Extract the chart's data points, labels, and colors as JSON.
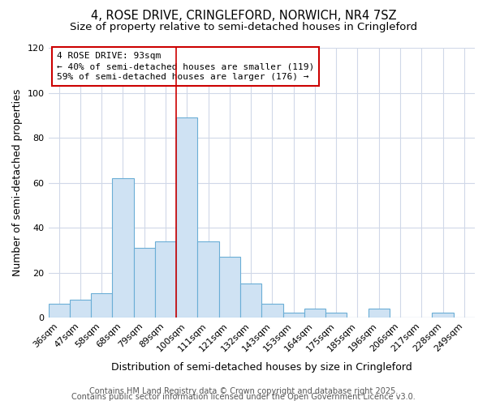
{
  "title1": "4, ROSE DRIVE, CRINGLEFORD, NORWICH, NR4 7SZ",
  "title2": "Size of property relative to semi-detached houses in Cringleford",
  "xlabel": "Distribution of semi-detached houses by size in Cringleford",
  "ylabel": "Number of semi-detached properties",
  "categories": [
    "36sqm",
    "47sqm",
    "58sqm",
    "68sqm",
    "79sqm",
    "89sqm",
    "100sqm",
    "111sqm",
    "121sqm",
    "132sqm",
    "143sqm",
    "153sqm",
    "164sqm",
    "175sqm",
    "185sqm",
    "196sqm",
    "206sqm",
    "217sqm",
    "228sqm",
    "249sqm"
  ],
  "values": [
    6,
    8,
    11,
    62,
    31,
    34,
    89,
    34,
    27,
    15,
    6,
    2,
    4,
    2,
    0,
    4,
    0,
    0,
    2,
    0
  ],
  "bar_color": "#cfe2f3",
  "bar_edge_color": "#6baed6",
  "ylim": [
    0,
    120
  ],
  "yticks": [
    0,
    20,
    40,
    60,
    80,
    100,
    120
  ],
  "red_line_x": 5.5,
  "annotation_title": "4 ROSE DRIVE: 93sqm",
  "annotation_line1": "← 40% of semi-detached houses are smaller (119)",
  "annotation_line2": "59% of semi-detached houses are larger (176) →",
  "annotation_box_color": "#ffffff",
  "annotation_border_color": "#cc0000",
  "footer1": "Contains HM Land Registry data © Crown copyright and database right 2025.",
  "footer2": "Contains public sector information licensed under the Open Government Licence v3.0.",
  "background_color": "#ffffff",
  "plot_background_color": "#ffffff",
  "grid_color": "#d0d8e8",
  "title_fontsize": 10.5,
  "subtitle_fontsize": 9.5,
  "axis_label_fontsize": 9,
  "tick_fontsize": 8,
  "annotation_fontsize": 8,
  "footer_fontsize": 7
}
